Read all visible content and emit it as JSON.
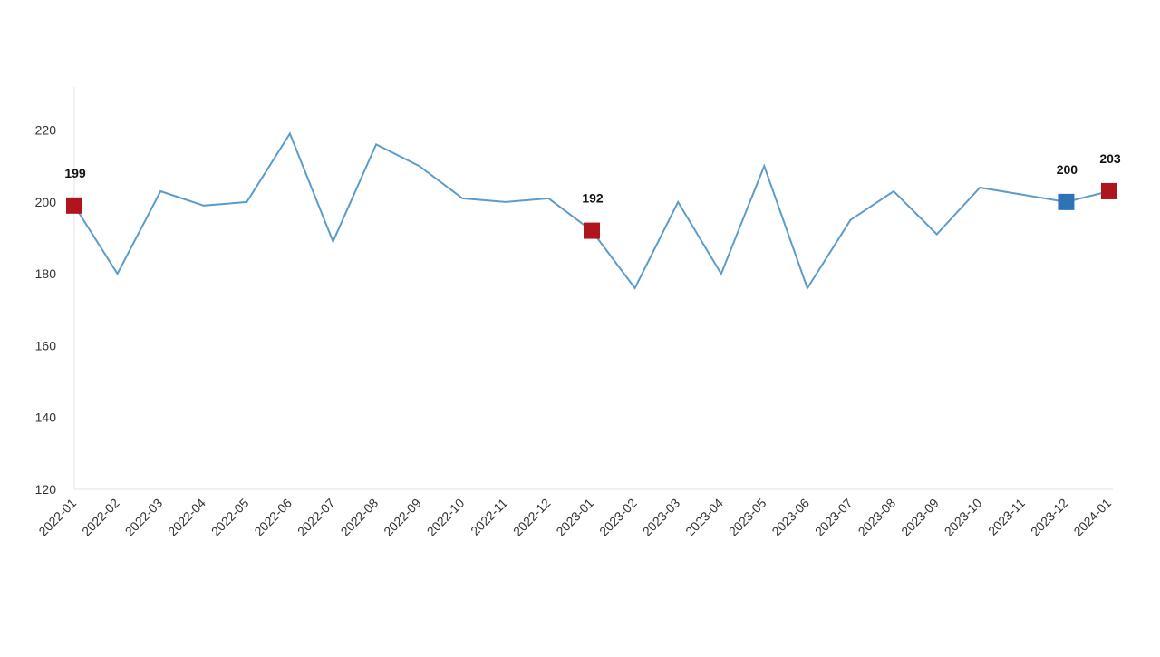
{
  "chart_data": {
    "type": "line",
    "title": "",
    "xlabel": "",
    "ylabel": "",
    "ylim": [
      120,
      232
    ],
    "yticks": [
      120,
      140,
      160,
      180,
      200,
      220
    ],
    "grid": false,
    "categories": [
      "2022-01",
      "2022-02",
      "2022-03",
      "2022-04",
      "2022-05",
      "2022-06",
      "2022-07",
      "2022-08",
      "2022-09",
      "2022-10",
      "2022-11",
      "2022-12",
      "2023-01",
      "2023-02",
      "2023-03",
      "2023-04",
      "2023-05",
      "2023-06",
      "2023-07",
      "2023-08",
      "2023-09",
      "2023-10",
      "2023-11",
      "2023-12",
      "2024-01"
    ],
    "series": [
      {
        "values": [
          199,
          180,
          203,
          199,
          200,
          219,
          189,
          216,
          210,
          201,
          200,
          201,
          192,
          176,
          200,
          180,
          210,
          176,
          195,
          203,
          191,
          204,
          202,
          200,
          203
        ],
        "color": "#5b9cc9"
      }
    ],
    "highlights": [
      {
        "category": "2022-01",
        "value": 199,
        "label": "199",
        "color": "#b0151c"
      },
      {
        "category": "2023-01",
        "value": 192,
        "label": "192",
        "color": "#b0151c"
      },
      {
        "category": "2023-12",
        "value": 200,
        "label": "200",
        "color": "#2e74b5"
      },
      {
        "category": "2024-01",
        "value": 203,
        "label": "203",
        "color": "#b0151c"
      }
    ]
  }
}
